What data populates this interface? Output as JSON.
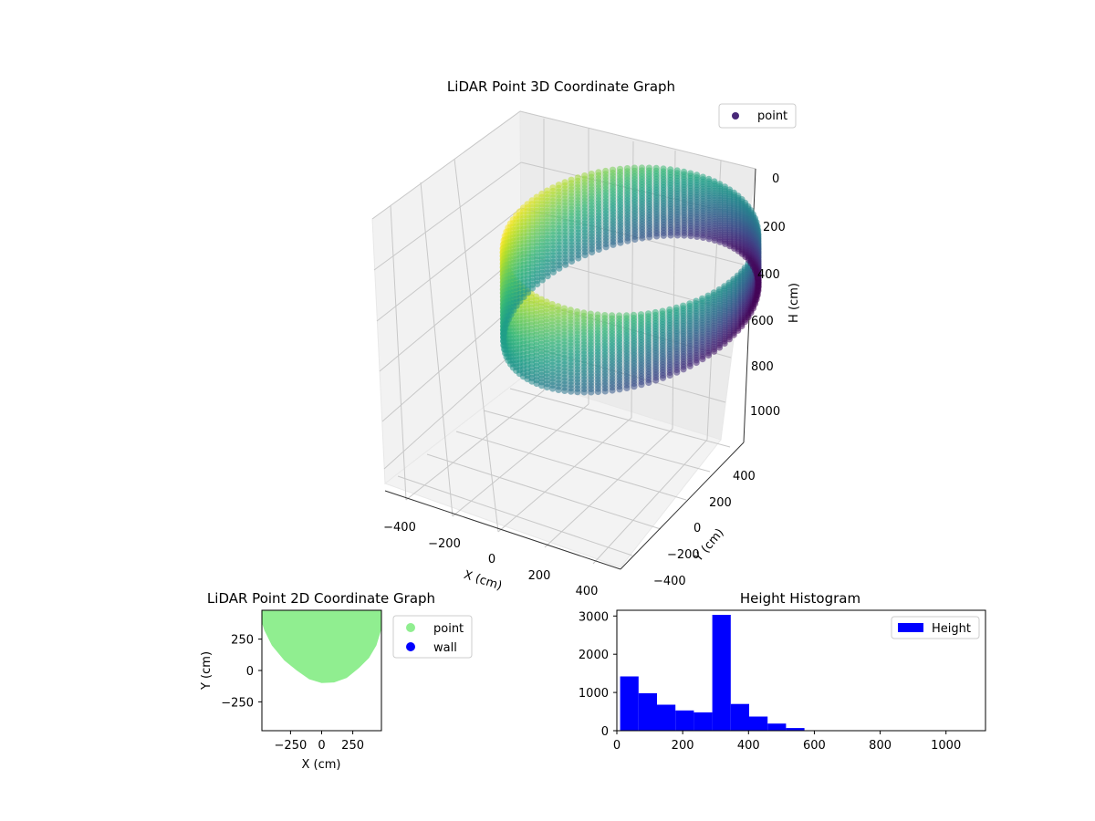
{
  "chart_data": [
    {
      "type": "scatter",
      "title": "LiDAR Point 3D Coordinate Graph",
      "xlabel": "X (cm)",
      "ylabel": "Y (cm)",
      "zlabel": "H (cm)",
      "x_ticks": [
        "−400",
        "−200",
        "0",
        "200",
        "400"
      ],
      "y_ticks": [
        "−400",
        "−200",
        "0",
        "200",
        "400"
      ],
      "z_ticks": [
        "0",
        "200",
        "400",
        "600",
        "800",
        "1000"
      ],
      "zlim": [
        0,
        1100
      ],
      "z_inverted": true,
      "grid": true,
      "legend": {
        "placement": "top-right",
        "entries": [
          {
            "label": "point",
            "color": "#482878"
          }
        ]
      },
      "colormap": "viridis",
      "series": [
        {
          "name": "point",
          "shape": "ring wall",
          "radius_cm": 430,
          "height_range_cm": [
            0,
            400
          ]
        }
      ]
    },
    {
      "type": "scatter",
      "title": "LiDAR Point 2D Coordinate Graph",
      "xlabel": "X (cm)",
      "ylabel": "Y (cm)",
      "x_ticks": [
        "−250",
        "0",
        "250"
      ],
      "y_ticks": [
        "250",
        "0",
        "−250"
      ],
      "xlim": [
        -480,
        480
      ],
      "ylim": [
        -480,
        480
      ],
      "legend": {
        "placement": "outside-right",
        "entries": [
          {
            "label": "point",
            "color": "#90ee90"
          },
          {
            "label": "wall",
            "color": "#0000ff"
          }
        ]
      },
      "series": [
        {
          "name": "point",
          "color": "#90ee90",
          "outline": [
            [
              -480,
              480
            ],
            [
              480,
              480
            ],
            [
              480,
              330
            ],
            [
              440,
              200
            ],
            [
              380,
              100
            ],
            [
              300,
              20
            ],
            [
              200,
              -60
            ],
            [
              100,
              -95
            ],
            [
              0,
              -100
            ],
            [
              -100,
              -70
            ],
            [
              -200,
              0
            ],
            [
              -300,
              80
            ],
            [
              -400,
              200
            ],
            [
              -460,
              320
            ],
            [
              -480,
              380
            ]
          ]
        },
        {
          "name": "wall",
          "color": "#0000ff",
          "points": []
        }
      ]
    },
    {
      "type": "bar",
      "title": "Height Histogram",
      "x_ticks": [
        "0",
        "200",
        "400",
        "600",
        "800",
        "1000"
      ],
      "y_ticks": [
        "0",
        "1000",
        "2000",
        "3000"
      ],
      "xlim": [
        0,
        1120
      ],
      "ylim": [
        0,
        3150
      ],
      "legend": {
        "placement": "top-right",
        "entries": [
          {
            "label": "Height",
            "color": "#0000ff"
          }
        ]
      },
      "bin_edges": [
        10,
        66,
        122,
        178,
        234,
        290,
        346,
        402,
        458,
        514,
        570
      ],
      "series": [
        {
          "name": "Height",
          "color": "#0000ff",
          "values": [
            1420,
            980,
            680,
            530,
            480,
            3030,
            700,
            370,
            185,
            70
          ]
        }
      ]
    }
  ]
}
